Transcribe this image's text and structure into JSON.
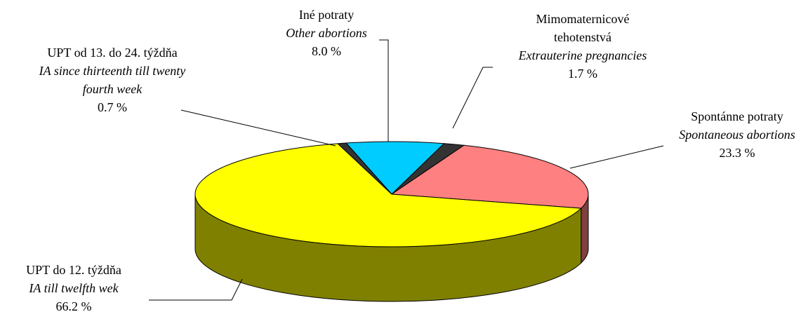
{
  "chart_data": {
    "type": "pie",
    "categories": [
      "Iné potraty",
      "Mimomaternicové tehotenstvá",
      "Spontánne potraty",
      "UPT do 12. týždňa",
      "UPT od 13. do 24. týždňa"
    ],
    "categories_en": [
      "Other abortions",
      "Extrauterine pregnancies",
      "Spontaneous abortions",
      "IA till twelfth wek",
      "IA since thirteenth till twenty fourth week"
    ],
    "values": [
      8.0,
      1.7,
      23.3,
      66.2,
      0.7
    ],
    "value_labels": [
      "8.0 %",
      "1.7 %",
      "23.3 %",
      "66.2 %",
      "0.7 %"
    ],
    "colors": [
      "#00ccff",
      "#333333",
      "#ff8080",
      "#ffff00",
      "#333333"
    ]
  }
}
